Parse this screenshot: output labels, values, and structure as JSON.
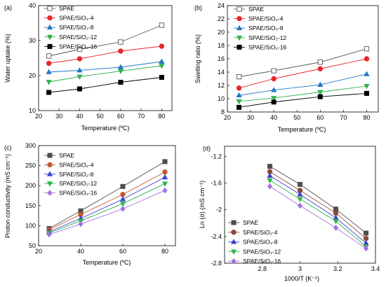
{
  "chart_data": [
    {
      "panel": "(a)",
      "type": "line",
      "xlabel": "Temperature (ºC)",
      "ylabel": "Water uptake (%)",
      "xlim": [
        20,
        85
      ],
      "ylim": [
        10,
        40
      ],
      "xticks": [
        20,
        30,
        40,
        50,
        60,
        70,
        80
      ],
      "yticks": [
        10,
        20,
        30,
        40
      ],
      "legend_position": "top-left",
      "x": [
        25,
        40,
        60,
        80
      ],
      "series": [
        {
          "name": "SPAE",
          "values": [
            25.6,
            27.5,
            29.6,
            34.4
          ],
          "color": "#555555",
          "marker": "square-open"
        },
        {
          "name": "SPAE/SiO₂-4",
          "values": [
            23.5,
            24.8,
            27.0,
            28.4
          ],
          "color": "#e8272a",
          "marker": "circle"
        },
        {
          "name": "SPAE/SiO₂-8",
          "values": [
            21.0,
            21.5,
            22.4,
            24.0
          ],
          "color": "#1f77c8",
          "marker": "triangle-up"
        },
        {
          "name": "SPAE/SiO₂-12",
          "values": [
            18.2,
            19.7,
            21.3,
            22.8
          ],
          "color": "#2db34a",
          "marker": "triangle-down"
        },
        {
          "name": "SPAE/SiO₂-16",
          "values": [
            15.2,
            16.2,
            18.1,
            19.5
          ],
          "color": "#000000",
          "marker": "square"
        }
      ]
    },
    {
      "panel": "(b)",
      "type": "line",
      "xlabel": "Temperature (ºC)",
      "ylabel": "Swelling ratio (%)",
      "xlim": [
        20,
        85
      ],
      "ylim": [
        8,
        24
      ],
      "xticks": [
        20,
        30,
        40,
        50,
        60,
        70,
        80
      ],
      "yticks": [
        8,
        10,
        12,
        14,
        16,
        18,
        20,
        22,
        24
      ],
      "legend_position": "top-left",
      "x": [
        25,
        40,
        60,
        80
      ],
      "series": [
        {
          "name": "SPAE",
          "values": [
            13.3,
            14.2,
            15.5,
            17.5
          ],
          "color": "#555555",
          "marker": "square-open"
        },
        {
          "name": "SPAE/SiO₂-4",
          "values": [
            11.6,
            13.0,
            14.5,
            16.0
          ],
          "color": "#e8272a",
          "marker": "circle"
        },
        {
          "name": "SPAE/SiO₂-8",
          "values": [
            10.5,
            11.3,
            12.1,
            13.7
          ],
          "color": "#1f77c8",
          "marker": "triangle-up"
        },
        {
          "name": "SPAE/SiO₂-12",
          "values": [
            9.6,
            10.1,
            11.0,
            11.9
          ],
          "color": "#2db34a",
          "marker": "triangle-down"
        },
        {
          "name": "SPAE/SiO₂-16",
          "values": [
            8.7,
            9.5,
            10.3,
            10.8
          ],
          "color": "#000000",
          "marker": "square"
        }
      ]
    },
    {
      "panel": "(c)",
      "type": "line",
      "xlabel": "Temperature (ºC)",
      "ylabel": "Proton conductivity (mS cm⁻¹)",
      "xlim": [
        20,
        85
      ],
      "ylim": [
        50,
        300
      ],
      "xticks": [
        20,
        40,
        60,
        80
      ],
      "yticks": [
        50,
        100,
        150,
        200,
        250,
        300
      ],
      "legend_position": "top-left",
      "x": [
        25,
        40,
        60,
        80
      ],
      "series": [
        {
          "name": "SPAE",
          "values": [
            93,
            137,
            198,
            260
          ],
          "color": "#4d4d4d",
          "marker": "square"
        },
        {
          "name": "SPAE/SiO₂-4",
          "values": [
            90,
            128,
            178,
            234
          ],
          "color": "#c0582e",
          "marker": "circle"
        },
        {
          "name": "SPAE/SiO₂-8",
          "values": [
            85,
            118,
            166,
            221
          ],
          "color": "#3a3fcf",
          "marker": "triangle-up"
        },
        {
          "name": "SPAE/SiO₂-12",
          "values": [
            82,
            112,
            155,
            205
          ],
          "color": "#2db34a",
          "marker": "triangle-down"
        },
        {
          "name": "SPAE/SiO₂-16",
          "values": [
            78,
            104,
            142,
            188
          ],
          "color": "#a470e0",
          "marker": "diamond"
        }
      ]
    },
    {
      "panel": "(d)",
      "type": "line",
      "xlabel": "1000/T (K⁻¹)",
      "ylabel": "Ln (σ) (mS cm⁻¹)",
      "xlim": [
        2.6,
        3.4
      ],
      "ylim": [
        -2.8,
        -1.05
      ],
      "xticks": [
        2.8,
        3.0,
        3.2,
        3.4
      ],
      "yticks": [
        -1.2,
        -1.6,
        -2.0,
        -2.4,
        -2.8
      ],
      "legend_position": "bottom-left",
      "x": [
        2.84,
        3.0,
        3.19,
        3.35
      ],
      "series": [
        {
          "name": "SPAE",
          "values": [
            -1.35,
            -1.62,
            -1.99,
            -2.35
          ],
          "color": "#4d4d4d",
          "marker": "square"
        },
        {
          "name": "SPAE/SiO₂-4",
          "values": [
            -1.43,
            -1.71,
            -2.05,
            -2.43
          ],
          "color": "#8a4a3a",
          "marker": "circle"
        },
        {
          "name": "SPAE/SiO₂-8",
          "values": [
            -1.49,
            -1.77,
            -2.12,
            -2.5
          ],
          "color": "#3a3fcf",
          "marker": "triangle-up"
        },
        {
          "name": "SPAE/SiO₂-12",
          "values": [
            -1.56,
            -1.84,
            -2.17,
            -2.55
          ],
          "color": "#2db34a",
          "marker": "triangle-down"
        },
        {
          "name": "SPAE/SiO₂-16",
          "values": [
            -1.65,
            -1.94,
            -2.27,
            -2.58
          ],
          "color": "#a470e0",
          "marker": "diamond"
        }
      ]
    }
  ]
}
